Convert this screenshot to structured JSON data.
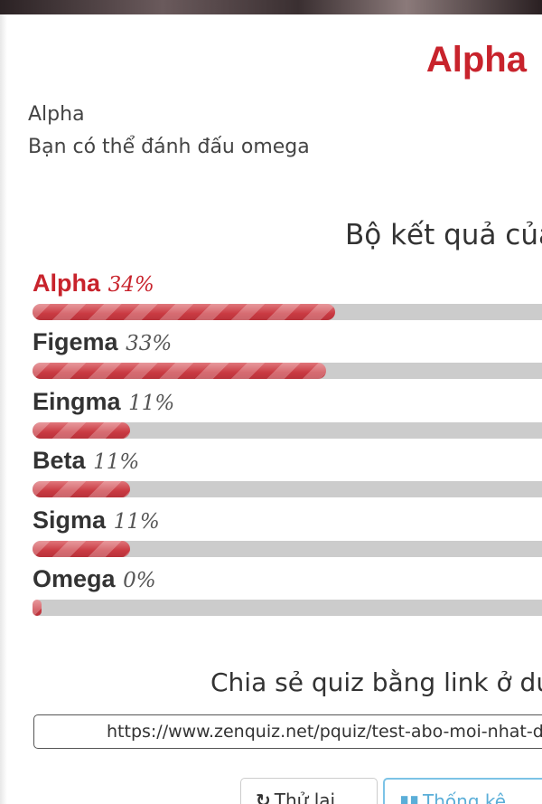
{
  "result": {
    "title": "Alpha",
    "description_line1": "Alpha",
    "description_line2": "Bạn có thể đánh đấu omega"
  },
  "results_heading": "Bộ kết quả của",
  "results": [
    {
      "name": "Alpha",
      "percent_label": "34%",
      "percent": 34,
      "winner": true
    },
    {
      "name": "Figema",
      "percent_label": "33%",
      "percent": 33,
      "winner": false
    },
    {
      "name": "Eingma",
      "percent_label": "11%",
      "percent": 11,
      "winner": false
    },
    {
      "name": "Beta",
      "percent_label": "11%",
      "percent": 11,
      "winner": false
    },
    {
      "name": "Sigma",
      "percent_label": "11%",
      "percent": 11,
      "winner": false
    },
    {
      "name": "Omega",
      "percent_label": "0%",
      "percent": 0,
      "winner": false
    }
  ],
  "share": {
    "heading": "Chia sẻ quiz bằng link ở dưới",
    "url": "https://www.zenquiz.net/pquiz/test-abo-moi-nhat-da"
  },
  "buttons": {
    "retry_label": "Thử lại",
    "stats_label": "Thống kê"
  },
  "colors": {
    "accent": "#c8232c",
    "bar_track": "#cccccc",
    "stats_border": "#7cc3e6"
  },
  "icons": {
    "retry": "refresh-icon",
    "stats": "bar-chart-icon"
  }
}
